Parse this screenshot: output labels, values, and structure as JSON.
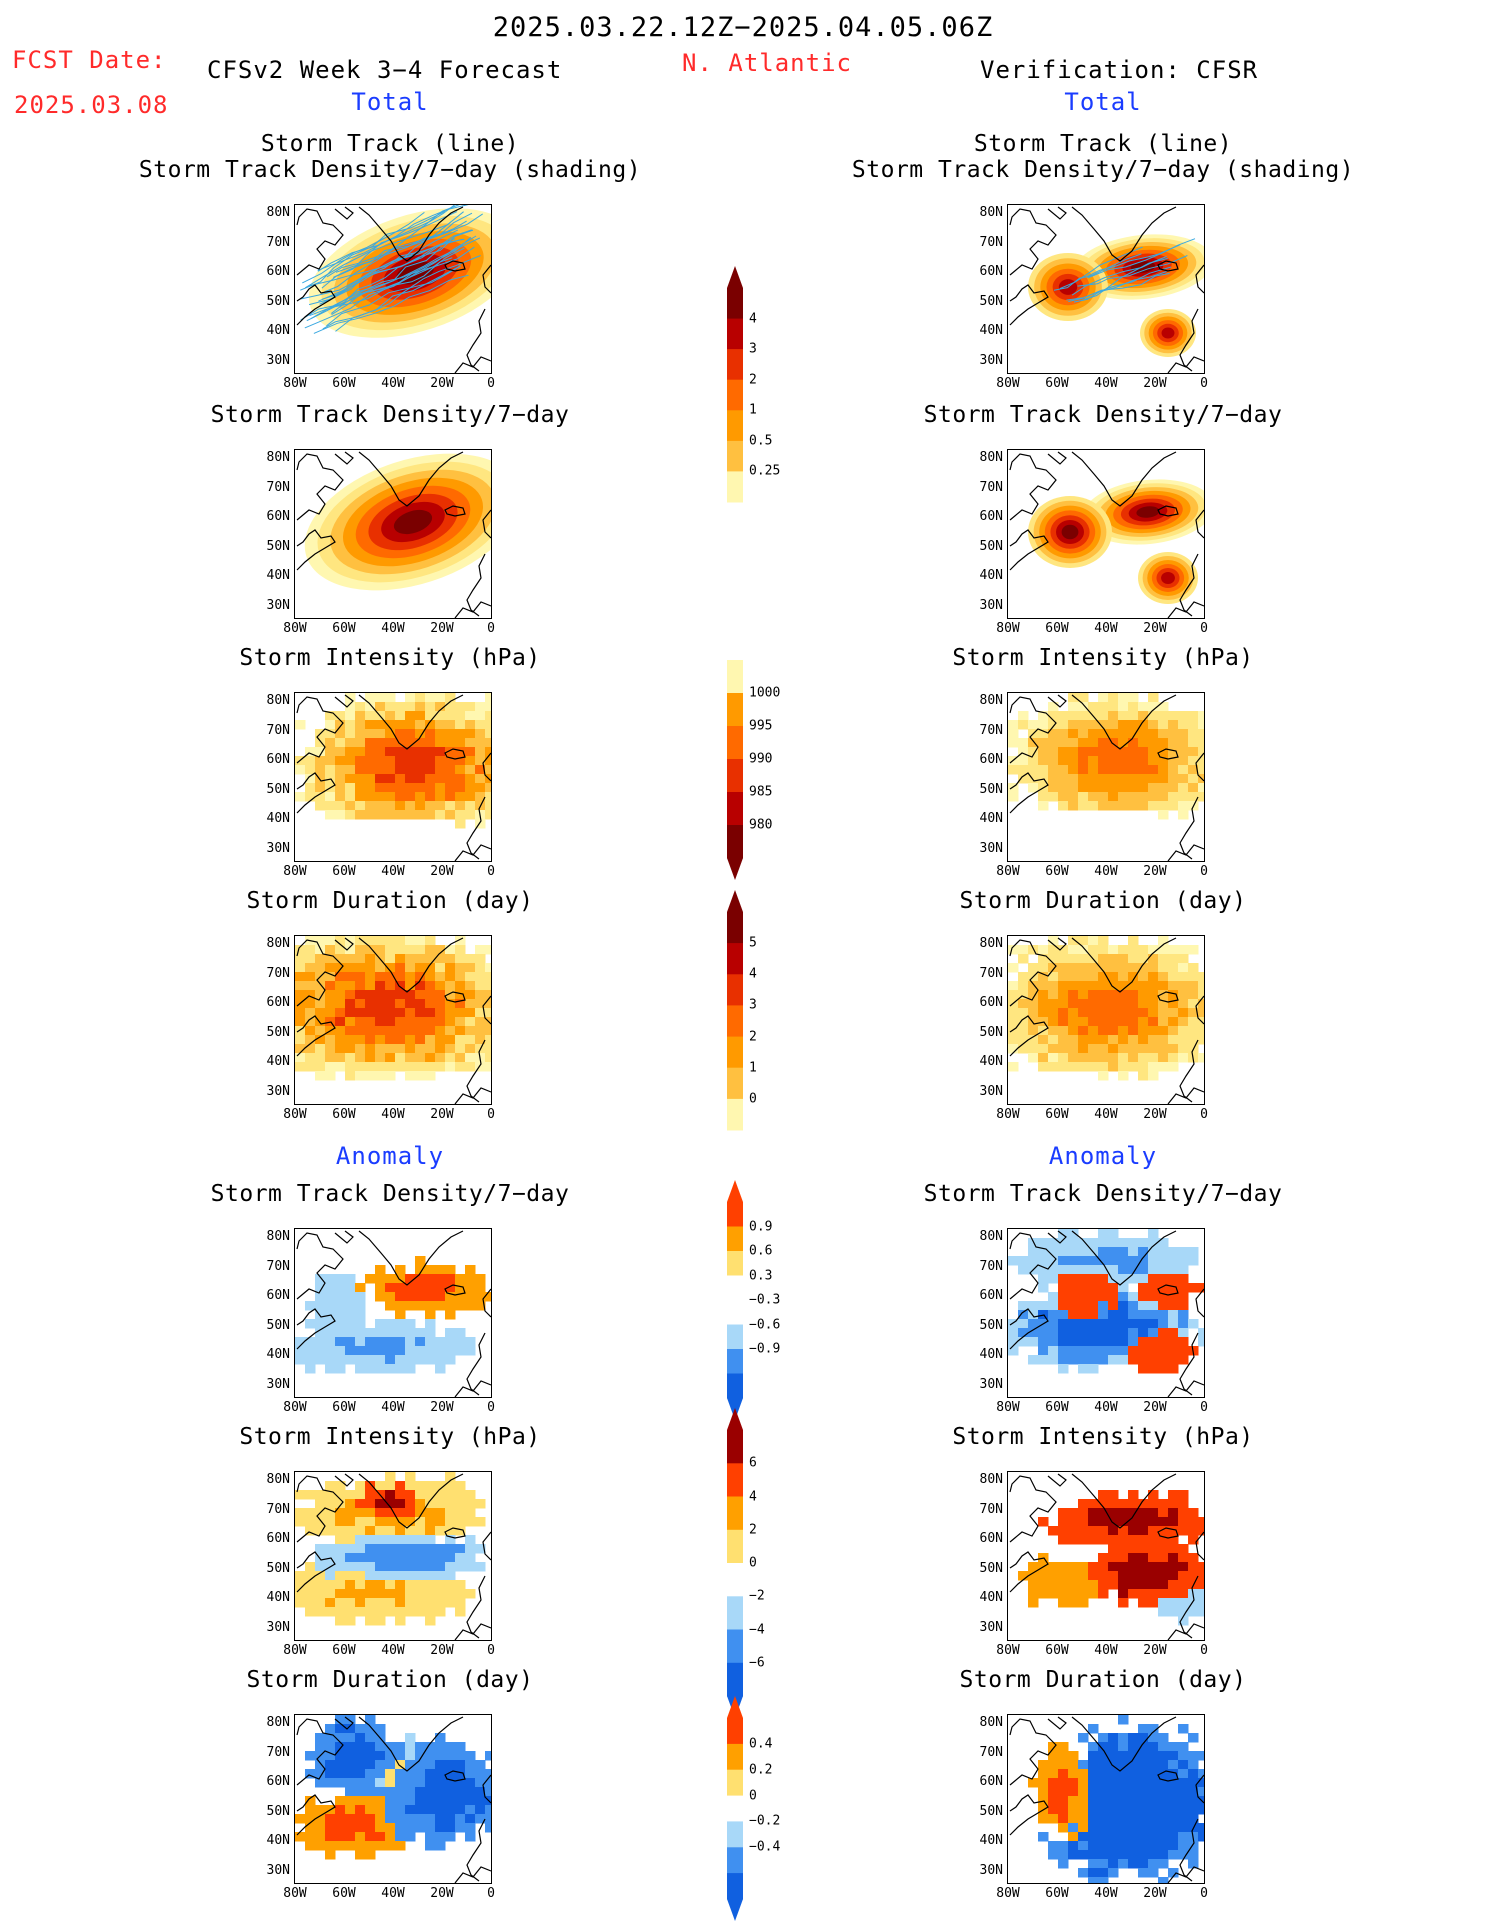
{
  "header": {
    "date_range": "2025.03.22.12Z−2025.04.05.06Z",
    "fcst_label": "FCST Date:",
    "fcst_date": "2025.03.08",
    "model_title": "CFSv2 Week 3−4 Forecast",
    "region": "N. Atlantic",
    "verification": "Verification: CFSR"
  },
  "section_total": "Total",
  "section_anomaly": "Anomaly",
  "panel_titles": {
    "track_line": "Storm Track (line)",
    "track_shading": "Storm Track Density/7−day (shading)",
    "density": "Storm Track Density/7−day",
    "intensity": "Storm Intensity (hPa)",
    "duration": "Storm Duration (day)"
  },
  "lat_labels": [
    "80N",
    "70N",
    "60N",
    "50N",
    "40N",
    "30N"
  ],
  "lon_labels": [
    "80W",
    "60W",
    "40W",
    "20W",
    "0"
  ],
  "colorbars": {
    "density_total": [
      "4",
      "3",
      "2",
      "1",
      "0.5",
      "0.25"
    ],
    "intensity_total": [
      "1000",
      "995",
      "990",
      "985",
      "980"
    ],
    "duration_total": [
      "5",
      "4",
      "3",
      "2",
      "1",
      "0"
    ],
    "density_anom": [
      "0.9",
      "0.6",
      "0.3",
      "−0.3",
      "−0.6",
      "−0.9"
    ],
    "intensity_anom": [
      "6",
      "4",
      "2",
      "0",
      "−2",
      "−4",
      "−6"
    ],
    "duration_anom": [
      "0.4",
      "0.2",
      "0",
      "−0.2",
      "−0.4"
    ]
  },
  "colors": {
    "header_red": "#ff2a2a",
    "section_blue": "#1a3cff",
    "warm_scale": [
      "#fff7b0",
      "#ffe680",
      "#ffc040",
      "#ff9a00",
      "#ff6a00",
      "#e83000",
      "#b80000",
      "#7a0000"
    ],
    "anom_scale": [
      "#1060e0",
      "#4090f0",
      "#a8d8f8",
      "#ffffff",
      "#ffe070",
      "#ffa000",
      "#ff4000",
      "#9a0000"
    ],
    "track_lines": "#3aa8e0"
  }
}
